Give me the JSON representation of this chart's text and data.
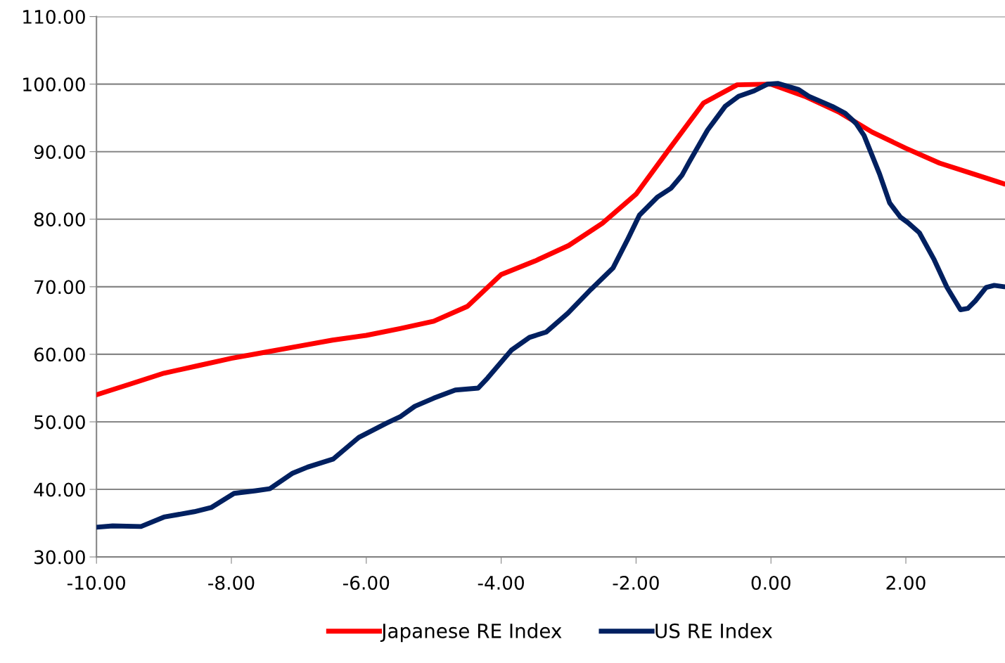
{
  "chart_data": {
    "type": "line",
    "xlim": [
      -10,
      3.47
    ],
    "ylim": [
      30,
      110
    ],
    "xticks": [
      {
        "value": -10,
        "label": "-10.00"
      },
      {
        "value": -8,
        "label": "-8.00"
      },
      {
        "value": -6,
        "label": "-6.00"
      },
      {
        "value": -4,
        "label": "-4.00"
      },
      {
        "value": -2,
        "label": "-2.00"
      },
      {
        "value": 0,
        "label": "0.00"
      },
      {
        "value": 2,
        "label": "2.00"
      }
    ],
    "yticks": [
      {
        "value": 30,
        "label": "30.00"
      },
      {
        "value": 40,
        "label": "40.00"
      },
      {
        "value": 50,
        "label": "50.00"
      },
      {
        "value": 60,
        "label": "60.00"
      },
      {
        "value": 70,
        "label": "70.00"
      },
      {
        "value": 80,
        "label": "80.00"
      },
      {
        "value": 90,
        "label": "90.00"
      },
      {
        "value": 100,
        "label": "100.00"
      },
      {
        "value": 110,
        "label": "110.00"
      }
    ],
    "grid": "y",
    "legend": "bottom",
    "marker": "none",
    "line_style": "solid",
    "series": [
      {
        "name": "Japanese RE Index",
        "color": "#ff0000",
        "x": [
          -10,
          -9.5,
          -9,
          -8.5,
          -8,
          -7.5,
          -7,
          -6.5,
          -6,
          -5.5,
          -5,
          -4.5,
          -4,
          -3.5,
          -3,
          -2.5,
          -2,
          -1.5,
          -1,
          -0.5,
          0,
          0.5,
          1,
          1.5,
          2,
          2.5,
          3,
          3.47
        ],
        "values": [
          54.0,
          55.6,
          57.2,
          58.3,
          59.4,
          60.3,
          61.2,
          62.1,
          62.8,
          63.8,
          64.9,
          67.1,
          71.8,
          73.8,
          76.1,
          79.4,
          83.7,
          90.5,
          97.2,
          99.9,
          100.0,
          98.2,
          95.9,
          92.9,
          90.5,
          88.3,
          86.7,
          85.2
        ]
      },
      {
        "name": "US RE Index",
        "color": "#002060",
        "x": [
          -10,
          -9.76,
          -9.34,
          -9.0,
          -8.55,
          -8.3,
          -7.96,
          -7.64,
          -7.43,
          -7.09,
          -6.87,
          -6.49,
          -6.11,
          -5.7,
          -5.49,
          -5.28,
          -5.0,
          -4.68,
          -4.34,
          -4.2,
          -3.85,
          -3.58,
          -3.33,
          -3.01,
          -2.67,
          -2.34,
          -2.12,
          -1.95,
          -1.68,
          -1.48,
          -1.32,
          -1.21,
          -0.94,
          -0.68,
          -0.48,
          -0.25,
          -0.05,
          0.1,
          0.41,
          0.56,
          0.91,
          1.1,
          1.26,
          1.38,
          1.61,
          1.76,
          1.92,
          2.03,
          2.2,
          2.42,
          2.61,
          2.81,
          2.92,
          3.03,
          3.19,
          3.31,
          3.46
        ],
        "values": [
          34.4,
          34.6,
          34.5,
          35.9,
          36.7,
          37.3,
          39.4,
          39.8,
          40.1,
          42.4,
          43.3,
          44.5,
          47.7,
          49.8,
          50.8,
          52.3,
          53.5,
          54.7,
          55.0,
          56.5,
          60.6,
          62.5,
          63.3,
          66.1,
          69.6,
          72.8,
          77.1,
          80.6,
          83.3,
          84.6,
          86.5,
          88.5,
          93.2,
          96.7,
          98.2,
          99.0,
          100.0,
          100.1,
          99.2,
          98.2,
          96.7,
          95.7,
          94.2,
          92.4,
          86.7,
          82.4,
          80.3,
          79.5,
          78.0,
          74.0,
          69.9,
          66.6,
          66.8,
          67.9,
          69.9,
          70.2,
          70.0
        ]
      }
    ]
  }
}
